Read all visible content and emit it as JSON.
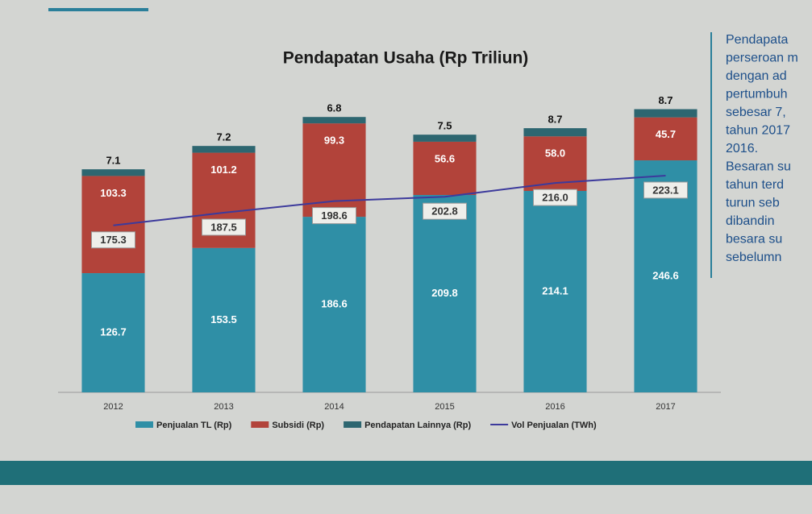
{
  "chart_data": {
    "type": "bar",
    "stacked": true,
    "title": "Pendapatan Usaha (Rp Triliun)",
    "categories": [
      "2012",
      "2013",
      "2014",
      "2015",
      "2016",
      "2017"
    ],
    "ylim": [
      0,
      310
    ],
    "y2lim": [
      15,
      295
    ],
    "series": [
      {
        "name": "Penjualan TL (Rp)",
        "color": "#2f8fa6",
        "values": [
          126.7,
          153.5,
          186.6,
          209.8,
          214.1,
          246.6
        ],
        "value_labels": [
          "126.7",
          "153.5",
          "186.6",
          "209.8",
          "214.1",
          "246.6"
        ]
      },
      {
        "name": "Subsidi (Rp)",
        "color": "#b2433a",
        "values": [
          103.3,
          101.2,
          99.3,
          56.6,
          58.0,
          45.7
        ],
        "value_labels": [
          "103.3",
          "101.2",
          "99.3",
          "56.6",
          "58.0",
          "45.7"
        ]
      },
      {
        "name": "Pendapatan Lainnya (Rp)",
        "color": "#2d6670",
        "values": [
          7.1,
          7.2,
          6.8,
          7.5,
          8.7,
          8.7
        ],
        "value_labels": [
          "7.1",
          "7.2",
          "6.8",
          "7.5",
          "8.7",
          "8.7"
        ]
      },
      {
        "name": "Vol Penjualan (TWh)",
        "type": "line",
        "axis": "y2",
        "color": "#3c3a9c",
        "values": [
          175.3,
          187.5,
          198.6,
          202.8,
          216.0,
          223.1
        ],
        "value_labels": [
          "175.3",
          "187.5",
          "198.6",
          "202.8",
          "216.0",
          "223.1"
        ]
      }
    ]
  },
  "side_text": {
    "lines": [
      "Pendapata",
      "perseroan m",
      "dengan ad",
      "pertumbuh",
      "sebesar 7,",
      "tahun 2017",
      "2016.",
      "Besaran su",
      "tahun terd",
      "turun seb",
      "dibandin",
      "besara su",
      "sebelumn"
    ]
  }
}
